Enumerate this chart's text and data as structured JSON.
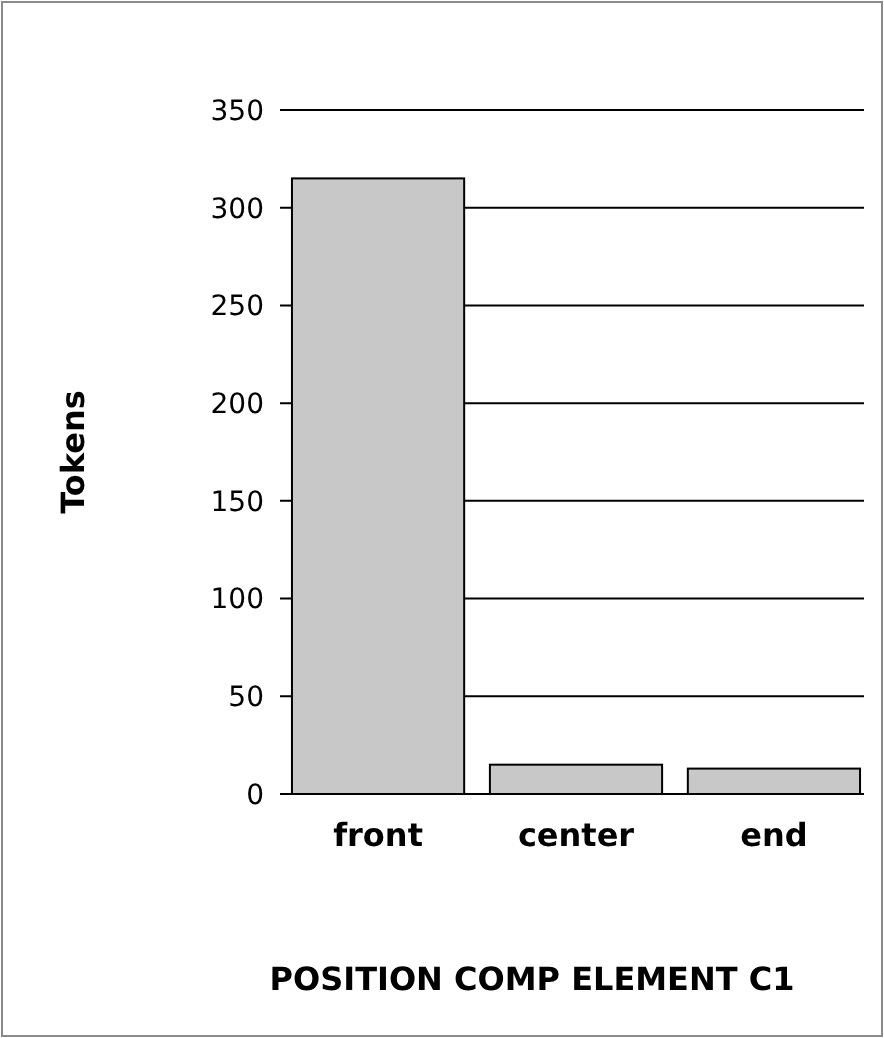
{
  "chart_data": {
    "type": "bar",
    "xlabel": "POSITION COMP ELEMENT C1",
    "ylabel": "Tokens",
    "categories": [
      "front",
      "center",
      "end"
    ],
    "values": [
      315,
      15,
      13
    ],
    "color": "#c8c8c8",
    "ylim": [
      0,
      350
    ],
    "yticks": [
      0,
      50,
      100,
      150,
      200,
      250,
      300,
      350
    ],
    "grid": "y"
  }
}
